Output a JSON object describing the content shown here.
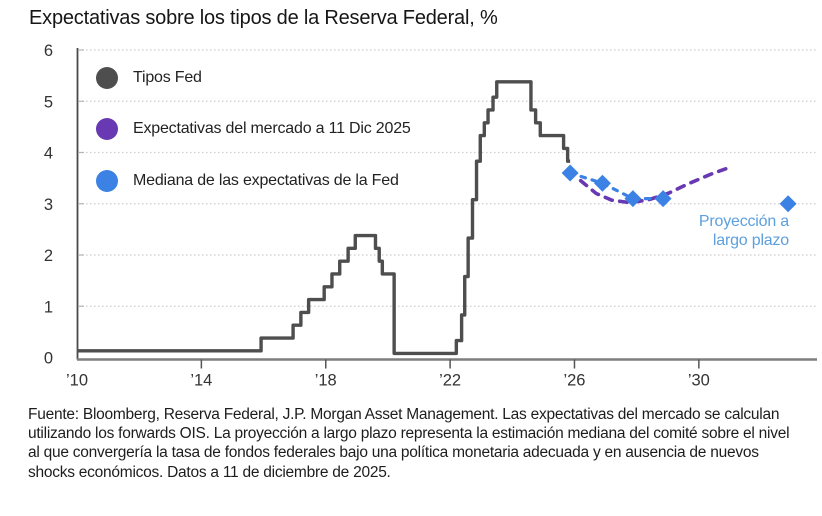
{
  "title": "Expectativas sobre los tipos de la Reserva Federal, %",
  "legend": {
    "items": [
      {
        "label": "Tipos Fed",
        "color": "#4E4E4E"
      },
      {
        "label": "Expectativas del mercado a 11 Dic 2025",
        "color": "#6839B2"
      },
      {
        "label": "Mediana de las expectativas de la Fed",
        "color": "#3C82E4"
      }
    ]
  },
  "annotation": {
    "line1": "Proyección a",
    "line2": "largo plazo",
    "color": "#5C9FDF"
  },
  "footer": {
    "text": "Fuente: Bloomberg, Reserva Federal, J.P. Morgan Asset Management. Las expectativas del mercado se calculan utilizando los forwards OIS. La proyección a largo plazo representa la estimación mediana del comité sobre el nivel al que convergería la tasa de fondos federales bajo una política monetaria adecuada y en ausencia de nuevos shocks económicos. Datos a 11 de diciembre de 2025."
  },
  "chart_data": {
    "type": "line",
    "title": "Expectativas sobre los tipos de la Reserva Federal, %",
    "xlabel": "",
    "ylabel": "%",
    "xlim": [
      2010,
      2033.8
    ],
    "ylim": [
      0,
      6
    ],
    "grid": true,
    "legend_position": "top-left",
    "x_ticks": [
      {
        "x": 2010,
        "label": "’10"
      },
      {
        "x": 2014,
        "label": "’14"
      },
      {
        "x": 2018,
        "label": "’18"
      },
      {
        "x": 2022,
        "label": "’22"
      },
      {
        "x": 2026,
        "label": "’26"
      },
      {
        "x": 2030,
        "label": "’30"
      }
    ],
    "y_ticks": [
      0,
      1,
      2,
      3,
      4,
      5,
      6
    ],
    "colors": {
      "fed_line": "#4E4E4E",
      "market": "#6839B2",
      "median": "#3C82E4",
      "grid": "#cccccc",
      "x_axis": "#7e7e7e",
      "y_axis": "#4a4a4a",
      "tick_label": "#333333"
    },
    "series": [
      {
        "name": "Tipos Fed",
        "type": "step",
        "color": "#4E4E4E",
        "end_x": 2025.86,
        "points": [
          [
            2010.0,
            0.13
          ],
          [
            2015.92,
            0.38
          ],
          [
            2016.95,
            0.63
          ],
          [
            2017.2,
            0.88
          ],
          [
            2017.45,
            1.13
          ],
          [
            2017.95,
            1.38
          ],
          [
            2018.2,
            1.63
          ],
          [
            2018.45,
            1.88
          ],
          [
            2018.72,
            2.13
          ],
          [
            2018.95,
            2.38
          ],
          [
            2019.6,
            2.13
          ],
          [
            2019.72,
            1.88
          ],
          [
            2019.82,
            1.63
          ],
          [
            2020.2,
            0.08
          ],
          [
            2022.2,
            0.33
          ],
          [
            2022.37,
            0.83
          ],
          [
            2022.47,
            1.58
          ],
          [
            2022.58,
            2.33
          ],
          [
            2022.72,
            3.08
          ],
          [
            2022.85,
            3.83
          ],
          [
            2022.97,
            4.33
          ],
          [
            2023.1,
            4.58
          ],
          [
            2023.22,
            4.83
          ],
          [
            2023.38,
            5.08
          ],
          [
            2023.5,
            5.38
          ],
          [
            2024.6,
            4.83
          ],
          [
            2024.75,
            4.58
          ],
          [
            2024.9,
            4.33
          ],
          [
            2025.65,
            4.08
          ],
          [
            2025.78,
            3.83
          ]
        ]
      },
      {
        "name": "Expectativas del mercado a 11 Dic 2025",
        "type": "line-dashed",
        "color": "#6839B2",
        "points": [
          [
            2026.2,
            3.45
          ],
          [
            2026.7,
            3.2
          ],
          [
            2027.2,
            3.07
          ],
          [
            2027.8,
            3.02
          ],
          [
            2028.4,
            3.08
          ],
          [
            2029.0,
            3.2
          ],
          [
            2029.7,
            3.4
          ],
          [
            2030.4,
            3.58
          ],
          [
            2030.95,
            3.7
          ]
        ]
      },
      {
        "name": "Mediana de las expectativas de la Fed",
        "type": "diamond-dashed",
        "color": "#3C82E4",
        "points": [
          [
            2025.86,
            3.6
          ],
          [
            2026.9,
            3.4
          ],
          [
            2027.88,
            3.1
          ],
          [
            2028.85,
            3.1
          ]
        ]
      },
      {
        "name": "Proyección a largo plazo",
        "type": "diamond",
        "color": "#3C82E4",
        "points": [
          [
            2032.87,
            3.0
          ]
        ]
      }
    ]
  }
}
